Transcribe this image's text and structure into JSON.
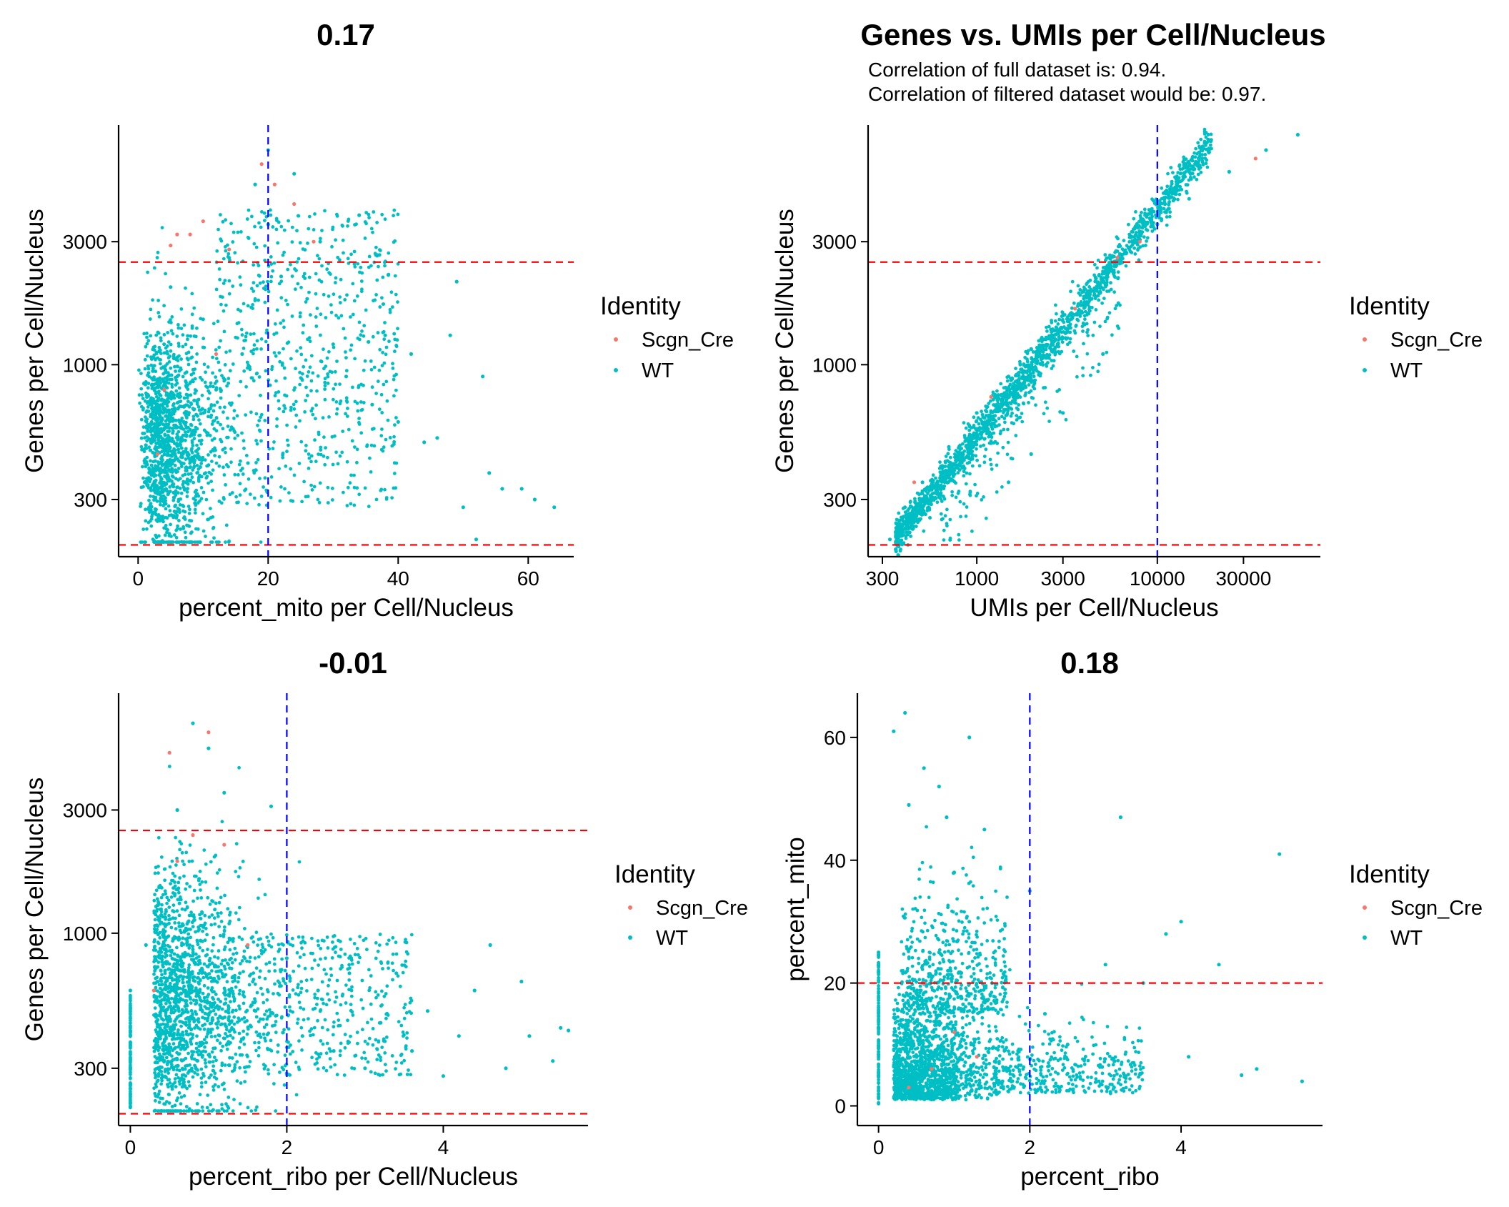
{
  "colors": {
    "Scgn_Cre": "#F8766D",
    "WT": "#00BFC4",
    "red_line": "#ff0000",
    "blue_line": "#0000ff"
  },
  "chart_data": [
    {
      "type": "scatter",
      "title": "0.17",
      "subtitle": [],
      "xlabel": "percent_mito per Cell/Nucleus",
      "ylabel": "Genes per Cell/Nucleus",
      "xscale": "linear",
      "yscale": "log10",
      "xlim": [
        -3,
        67
      ],
      "ylim": [
        180,
        8500
      ],
      "xticks": [
        0,
        20,
        40,
        60
      ],
      "xtick_labels": [
        "0",
        "20",
        "40",
        "60"
      ],
      "yticks": [
        300,
        1000,
        3000
      ],
      "ytick_labels": [
        "300",
        "1000",
        "3000"
      ],
      "hlines": [
        200,
        2500
      ],
      "vlines": [
        20
      ],
      "legend": {
        "title": "Identity",
        "entries": [
          "Scgn_Cre",
          "WT"
        ],
        "position": "right"
      },
      "series": [
        {
          "name": "WT",
          "points": [
            [
              1,
              350
            ],
            [
              2,
              500
            ],
            [
              3,
              700
            ],
            [
              4,
              1200
            ],
            [
              5,
              2000
            ],
            [
              6,
              900
            ],
            [
              7,
              600
            ],
            [
              8,
              400
            ],
            [
              10,
              1500
            ],
            [
              12,
              800
            ],
            [
              14,
              2600
            ],
            [
              16,
              1100
            ],
            [
              18,
              5000
            ],
            [
              20,
              6800
            ],
            [
              20,
              3500
            ],
            [
              22,
              2200
            ],
            [
              24,
              5500
            ],
            [
              26,
              1800
            ],
            [
              28,
              3000
            ],
            [
              30,
              1200
            ],
            [
              32,
              900
            ],
            [
              34,
              3800
            ],
            [
              36,
              700
            ],
            [
              38,
              1300
            ],
            [
              40,
              600
            ],
            [
              42,
              1100
            ],
            [
              44,
              500
            ],
            [
              46,
              520
            ],
            [
              48,
              1300
            ],
            [
              49,
              2100
            ],
            [
              50,
              280
            ],
            [
              52,
              210
            ],
            [
              53,
              900
            ],
            [
              54,
              380
            ],
            [
              56,
              330
            ],
            [
              59,
              330
            ],
            [
              61,
              300
            ],
            [
              64,
              280
            ]
          ]
        },
        {
          "name": "Scgn_Cre",
          "points": [
            [
              3,
              450
            ],
            [
              4,
              800
            ],
            [
              5,
              2900
            ],
            [
              6,
              3200
            ],
            [
              8,
              3200
            ],
            [
              10,
              3600
            ],
            [
              12,
              1100
            ],
            [
              14,
              2800
            ],
            [
              19,
              6000
            ],
            [
              21,
              5000
            ],
            [
              24,
              4200
            ],
            [
              27,
              3000
            ]
          ]
        }
      ]
    },
    {
      "type": "scatter",
      "title": "Genes vs. UMIs per Cell/Nucleus",
      "subtitle": [
        "Correlation of full dataset is: 0.94.",
        "Correlation of filtered dataset would be: 0.97."
      ],
      "xlabel": "UMIs per Cell/Nucleus",
      "ylabel": "Genes per Cell/Nucleus",
      "xscale": "log10",
      "yscale": "log10",
      "xlim": [
        250,
        80000
      ],
      "ylim": [
        180,
        8500
      ],
      "xticks": [
        300,
        1000,
        3000,
        10000,
        30000
      ],
      "xtick_labels": [
        "300",
        "1000",
        "3000",
        "10000",
        "30000"
      ],
      "yticks": [
        300,
        1000,
        3000
      ],
      "ytick_labels": [
        "300",
        "1000",
        "3000"
      ],
      "hlines": [
        200,
        2500
      ],
      "vlines": [
        10000
      ],
      "legend": {
        "title": "Identity",
        "entries": [
          "Scgn_Cre",
          "WT"
        ],
        "position": "right"
      },
      "series": [
        {
          "name": "WT",
          "points": [
            [
              330,
              210
            ],
            [
              400,
              280
            ],
            [
              500,
              350
            ],
            [
              700,
              480
            ],
            [
              1000,
              650
            ],
            [
              1500,
              900
            ],
            [
              2000,
              1150
            ],
            [
              3000,
              1550
            ],
            [
              5000,
              2300
            ],
            [
              7000,
              2850
            ],
            [
              10000,
              3500
            ],
            [
              15000,
              4400
            ],
            [
              25000,
              5600
            ],
            [
              40000,
              6800
            ],
            [
              60000,
              7800
            ],
            [
              1500,
              350
            ],
            [
              2000,
              450
            ],
            [
              3000,
              650
            ],
            [
              5000,
              1100
            ]
          ]
        },
        {
          "name": "Scgn_Cre",
          "points": [
            [
              450,
              350
            ],
            [
              1200,
              750
            ],
            [
              3500,
              1650
            ],
            [
              6000,
              2600
            ],
            [
              8000,
              3000
            ],
            [
              35000,
              6300
            ]
          ]
        }
      ]
    },
    {
      "type": "scatter",
      "title": "-0.01",
      "subtitle": [],
      "xlabel": "percent_ribo per Cell/Nucleus",
      "ylabel": "Genes per Cell/Nucleus",
      "xscale": "linear",
      "yscale": "log10",
      "xlim": [
        -0.15,
        5.85
      ],
      "ylim": [
        180,
        8500
      ],
      "xticks": [
        0,
        2,
        4
      ],
      "xtick_labels": [
        "0",
        "2",
        "4"
      ],
      "yticks": [
        300,
        1000,
        3000
      ],
      "ytick_labels": [
        "300",
        "1000",
        "3000"
      ],
      "hlines": [
        200,
        2500
      ],
      "vlines": [
        2
      ],
      "legend": {
        "title": "Identity",
        "entries": [
          "Scgn_Cre",
          "WT"
        ],
        "position": "right"
      },
      "series": [
        {
          "name": "WT",
          "points": [
            [
              0,
              250
            ],
            [
              0,
              600
            ],
            [
              0.2,
              900
            ],
            [
              0.4,
              1500
            ],
            [
              0.6,
              3000
            ],
            [
              0.8,
              6500
            ],
            [
              1.0,
              5200
            ],
            [
              1.2,
              3500
            ],
            [
              1.4,
              700
            ],
            [
              1.6,
              500
            ],
            [
              1.8,
              3100
            ],
            [
              2.0,
              800
            ],
            [
              2.2,
              400
            ],
            [
              2.4,
              600
            ],
            [
              2.6,
              350
            ],
            [
              2.8,
              700
            ],
            [
              3.0,
              300
            ],
            [
              3.2,
              450
            ],
            [
              3.4,
              700
            ],
            [
              3.6,
              350
            ],
            [
              3.8,
              500
            ],
            [
              4.0,
              280
            ],
            [
              4.2,
              400
            ],
            [
              4.4,
              600
            ],
            [
              4.6,
              900
            ],
            [
              4.8,
              300
            ],
            [
              5.0,
              650
            ],
            [
              5.1,
              400
            ],
            [
              5.4,
              320
            ],
            [
              5.5,
              430
            ],
            [
              5.6,
              420
            ]
          ]
        },
        {
          "name": "Scgn_Cre",
          "points": [
            [
              0.3,
              600
            ],
            [
              0.5,
              5000
            ],
            [
              0.6,
              1900
            ],
            [
              0.8,
              2400
            ],
            [
              1.0,
              6000
            ],
            [
              1.2,
              2200
            ],
            [
              1.5,
              900
            ]
          ]
        }
      ]
    },
    {
      "type": "scatter",
      "title": "0.18",
      "subtitle": [],
      "xlabel": "percent_ribo",
      "ylabel": "percent_mito",
      "xscale": "linear",
      "yscale": "linear",
      "xlim": [
        -0.28,
        5.87
      ],
      "ylim": [
        -3.2,
        67.2
      ],
      "xticks": [
        0,
        2,
        4
      ],
      "xtick_labels": [
        "0",
        "2",
        "4"
      ],
      "yticks": [
        0,
        20,
        40,
        60
      ],
      "ytick_labels": [
        "0",
        "20",
        "40",
        "60"
      ],
      "hlines": [
        20
      ],
      "vlines": [
        2
      ],
      "legend": {
        "title": "Identity",
        "entries": [
          "Scgn_Cre",
          "WT"
        ],
        "position": "right"
      },
      "series": [
        {
          "name": "WT",
          "points": [
            [
              0,
              5
            ],
            [
              0,
              25
            ],
            [
              0.2,
              61
            ],
            [
              0.35,
              64
            ],
            [
              0.4,
              49
            ],
            [
              0.6,
              55
            ],
            [
              0.8,
              52
            ],
            [
              0.9,
              47
            ],
            [
              1.2,
              60
            ],
            [
              1.4,
              45
            ],
            [
              1.0,
              38
            ],
            [
              1.2,
              30
            ],
            [
              0.8,
              25
            ],
            [
              1.5,
              20
            ],
            [
              2.0,
              35
            ],
            [
              2.2,
              15
            ],
            [
              2.5,
              10
            ],
            [
              3.0,
              23
            ],
            [
              3.2,
              47
            ],
            [
              3.5,
              20
            ],
            [
              3.8,
              28
            ],
            [
              4.0,
              30
            ],
            [
              4.1,
              8
            ],
            [
              4.5,
              23
            ],
            [
              4.8,
              5
            ],
            [
              5.0,
              6
            ],
            [
              5.3,
              41
            ],
            [
              5.6,
              4
            ]
          ]
        },
        {
          "name": "Scgn_Cre",
          "points": [
            [
              0.4,
              3
            ],
            [
              0.6,
              20
            ],
            [
              0.7,
              6
            ],
            [
              1.0,
              12
            ],
            [
              1.3,
              8
            ]
          ]
        }
      ]
    }
  ]
}
